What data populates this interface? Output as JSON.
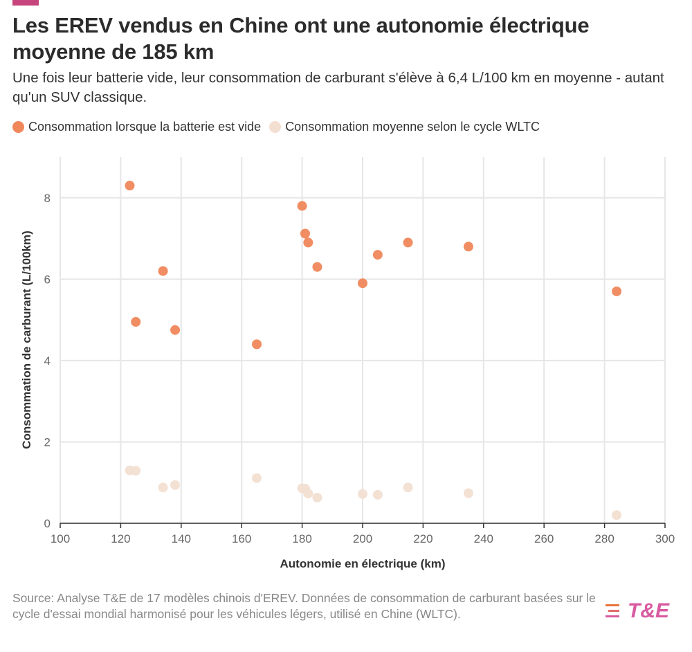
{
  "header": {
    "title": "Les EREV vendus en Chine ont une autonomie électrique moyenne de 185 km",
    "subtitle": "Une fois leur batterie vide, leur consommation de carburant s'élève à 6,4 L/100 km en moyenne - autant qu'un SUV classique."
  },
  "legend": [
    {
      "label": "Consommation lorsque la batterie est vide",
      "color": "#f0875a"
    },
    {
      "label": "Consommation moyenne selon le cycle WLTC",
      "color": "#f2dfd2"
    }
  ],
  "footer": {
    "source": "Source: Analyse T&E de 17 modèles chinois d'EREV. Données de consommation de carburant basées sur le cycle d'essai mondial harmonisé pour les véhicules légers, utilisé en Chine (WLTC).",
    "logo_text": "T&E"
  },
  "colors": {
    "accent": "#c6457c",
    "logo": "#d85aa0",
    "battery_empty": "#f0875a",
    "wltc": "#f2dfd2"
  },
  "chart_data": {
    "type": "scatter",
    "xlabel": "Autonomie en électrique (km)",
    "ylabel": "Consommation de carburant (L/100km)",
    "xlim": [
      100,
      300
    ],
    "ylim": [
      0,
      9
    ],
    "xticks": [
      100,
      120,
      140,
      160,
      180,
      200,
      220,
      240,
      260,
      280,
      300
    ],
    "yticks": [
      0,
      2,
      4,
      6,
      8
    ],
    "grid": true,
    "legend_position": "top-left",
    "series": [
      {
        "name": "Consommation lorsque la batterie est vide",
        "color": "#f0875a",
        "points": [
          [
            123,
            8.3
          ],
          [
            125,
            4.95
          ],
          [
            134,
            6.2
          ],
          [
            138,
            4.75
          ],
          [
            165,
            4.4
          ],
          [
            180,
            7.8
          ],
          [
            181,
            7.12
          ],
          [
            182,
            6.9
          ],
          [
            185,
            6.3
          ],
          [
            200,
            5.9
          ],
          [
            205,
            6.6
          ],
          [
            215,
            6.9
          ],
          [
            235,
            6.8
          ],
          [
            284,
            5.7
          ]
        ]
      },
      {
        "name": "Consommation moyenne selon le cycle WLTC",
        "color": "#f2dfd2",
        "points": [
          [
            123,
            1.3
          ],
          [
            125,
            1.29
          ],
          [
            134,
            0.88
          ],
          [
            138,
            0.94
          ],
          [
            165,
            1.11
          ],
          [
            180,
            0.86
          ],
          [
            181,
            0.85
          ],
          [
            182,
            0.73
          ],
          [
            185,
            0.63
          ],
          [
            200,
            0.72
          ],
          [
            205,
            0.7
          ],
          [
            215,
            0.88
          ],
          [
            235,
            0.74
          ],
          [
            284,
            0.2
          ]
        ]
      }
    ]
  }
}
